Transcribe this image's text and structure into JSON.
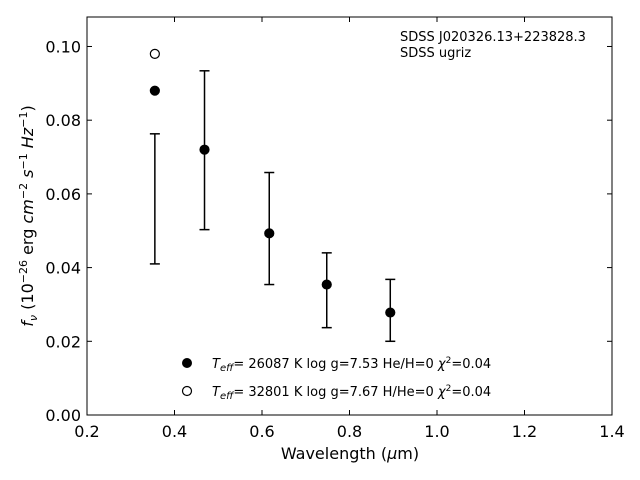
{
  "chart_data": {
    "type": "scatter",
    "xlabel": "Wavelength (μm)",
    "ylabel": "f_ν (10^-26 erg cm^-2 s^-1 Hz^-1)",
    "xlim": [
      0.2,
      1.4
    ],
    "ylim": [
      0.0,
      0.108
    ],
    "xticks": [
      0.2,
      0.4,
      0.6,
      0.8,
      1.0,
      1.2,
      1.4
    ],
    "xtick_labels": [
      "0.2",
      "0.4",
      "0.6",
      "0.8",
      "1.0",
      "1.2",
      "1.4"
    ],
    "yticks": [
      0.0,
      0.02,
      0.04,
      0.06,
      0.08,
      0.1
    ],
    "ytick_labels": [
      "0.00",
      "0.02",
      "0.04",
      "0.06",
      "0.08",
      "0.10"
    ],
    "grid": false,
    "annotation_lines": [
      "SDSS J020326.13+223828.3",
      "SDSS ugriz"
    ],
    "observed": {
      "x": [
        0.3551,
        0.4686,
        0.6166,
        0.748,
        0.8932
      ],
      "y_low": [
        0.041,
        0.0503,
        0.0354,
        0.0237,
        0.02
      ],
      "y_high": [
        0.0763,
        0.0934,
        0.0658,
        0.044,
        0.0368
      ]
    },
    "series": [
      {
        "name": "T_eff= 26087 K  log g=7.53  He/H=0  χ²=0.04",
        "marker": "filled-circle",
        "x": [
          0.3551,
          0.4686,
          0.6166,
          0.748,
          0.8932
        ],
        "y": [
          0.088,
          0.072,
          0.0493,
          0.0354,
          0.0278
        ]
      },
      {
        "name": "T_eff= 32801 K  log g=7.67  H/He=0  χ²=0.04",
        "marker": "open-circle",
        "x": [
          0.3551
        ],
        "y": [
          0.098
        ]
      }
    ],
    "legend_location": "lower center"
  }
}
